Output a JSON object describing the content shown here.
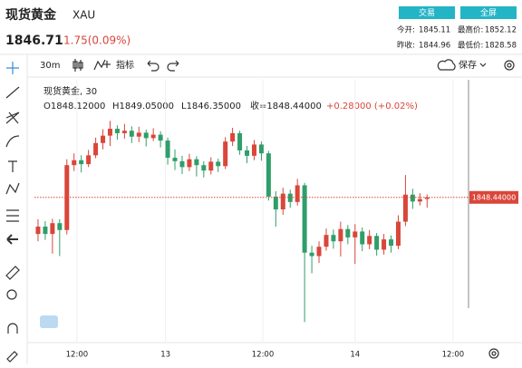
{
  "header": {
    "title": "现货黄金",
    "symbol": "XAU",
    "price": "1846.71",
    "change": "1.75(0.09%)",
    "buttons": [
      "交易",
      "全屏"
    ],
    "stats": [
      {
        "label": "今开:",
        "value": "1845.11"
      },
      {
        "label": "最高价:",
        "value": "1852.12"
      },
      {
        "label": "昨收:",
        "value": "1844.96"
      },
      {
        "label": "最低价:",
        "value": "1828.58"
      }
    ]
  },
  "toolbar": {
    "interval": "30m",
    "indicators": "指标",
    "save": "保存"
  },
  "legend": {
    "name": "现货黄金, 30",
    "open": "O1848.12000",
    "high": "H1849.05000",
    "low": "L1846.35000",
    "close": "收=1848.44000",
    "change": "+0.28000 (+0.02%)"
  },
  "chart_data": {
    "type": "candlestick",
    "up_color": "#d9463a",
    "down_color": "#2f9e6a",
    "x": [
      0,
      1,
      2,
      3,
      4,
      5,
      6,
      7,
      8,
      9,
      10,
      11,
      12,
      13,
      14,
      15,
      16,
      17,
      18,
      19,
      20,
      21,
      22,
      23,
      24,
      25,
      26,
      27,
      28,
      29,
      30,
      31,
      32,
      33,
      34,
      35,
      36,
      37,
      38,
      39,
      40,
      41,
      42,
      43,
      44,
      45,
      46,
      47,
      48,
      49,
      50,
      51,
      52,
      53,
      54
    ],
    "open": [
      1841.0,
      1842.5,
      1841.0,
      1843.2,
      1841.8,
      1855.0,
      1856.0,
      1855.2,
      1857.0,
      1859.5,
      1861.0,
      1862.4,
      1861.5,
      1862.0,
      1860.8,
      1861.6,
      1860.5,
      1861.2,
      1860.0,
      1856.5,
      1855.8,
      1854.6,
      1856.2,
      1855.0,
      1853.9,
      1855.7,
      1854.8,
      1859.8,
      1861.5,
      1858.0,
      1856.9,
      1859.2,
      1857.4,
      1848.6,
      1846.0,
      1849.2,
      1847.5,
      1850.9,
      1837.2,
      1836.5,
      1838.4,
      1840.8,
      1839.5,
      1842.0,
      1840.3,
      1841.5,
      1838.9,
      1840.6,
      1837.8,
      1839.9,
      1838.6,
      1843.5,
      1849.0,
      1847.6,
      1848.12
    ],
    "high": [
      1844.0,
      1843.6,
      1844.1,
      1844.0,
      1856.2,
      1857.4,
      1857.0,
      1858.1,
      1860.6,
      1862.3,
      1864.0,
      1863.1,
      1863.4,
      1862.9,
      1862.8,
      1862.2,
      1862.5,
      1861.9,
      1860.6,
      1858.2,
      1856.9,
      1857.3,
      1856.8,
      1855.8,
      1856.6,
      1856.3,
      1860.7,
      1862.6,
      1862.0,
      1858.9,
      1860.1,
      1859.8,
      1857.9,
      1849.7,
      1850.4,
      1850.0,
      1852.2,
      1851.4,
      1838.6,
      1839.5,
      1842.1,
      1841.9,
      1843.5,
      1842.8,
      1843.0,
      1842.3,
      1841.8,
      1841.2,
      1841.0,
      1840.7,
      1844.8,
      1853.0,
      1850.2,
      1849.3,
      1849.05
    ],
    "low": [
      1839.5,
      1839.8,
      1837.0,
      1836.5,
      1840.9,
      1853.8,
      1853.5,
      1854.6,
      1856.4,
      1858.2,
      1858.9,
      1860.2,
      1860.4,
      1859.5,
      1859.7,
      1858.8,
      1859.9,
      1858.6,
      1855.1,
      1854.0,
      1853.2,
      1853.8,
      1852.7,
      1852.5,
      1853.1,
      1853.6,
      1854.2,
      1858.9,
      1857.1,
      1855.4,
      1856.0,
      1855.9,
      1847.8,
      1842.5,
      1844.9,
      1846.3,
      1846.8,
      1823.1,
      1833.0,
      1835.1,
      1837.6,
      1838.0,
      1836.4,
      1838.9,
      1834.9,
      1837.5,
      1837.9,
      1836.6,
      1836.8,
      1837.2,
      1837.9,
      1842.6,
      1846.1,
      1846.8,
      1846.35
    ],
    "close": [
      1842.5,
      1841.0,
      1843.2,
      1841.8,
      1855.0,
      1856.0,
      1855.2,
      1857.0,
      1859.5,
      1861.0,
      1862.4,
      1861.5,
      1862.0,
      1860.8,
      1861.6,
      1860.5,
      1861.2,
      1860.0,
      1856.5,
      1855.8,
      1854.6,
      1856.2,
      1855.0,
      1853.9,
      1855.7,
      1854.8,
      1859.8,
      1861.5,
      1858.0,
      1856.9,
      1859.2,
      1857.4,
      1848.6,
      1846.0,
      1849.2,
      1847.5,
      1850.9,
      1837.2,
      1836.5,
      1838.4,
      1840.8,
      1839.5,
      1842.0,
      1840.3,
      1841.5,
      1838.9,
      1840.6,
      1837.8,
      1839.9,
      1838.6,
      1843.5,
      1849.0,
      1847.6,
      1848.1,
      1848.44
    ],
    "xlim": [
      -0.5,
      59.5
    ],
    "ylim": [
      1820,
      1872
    ],
    "xticks": [
      {
        "value": 5.4,
        "label": "12:00"
      },
      {
        "value": 17.7,
        "label": "13"
      },
      {
        "value": 31.2,
        "label": "12:00"
      },
      {
        "value": 44,
        "label": "14"
      },
      {
        "value": 57.6,
        "label": "12:00"
      }
    ],
    "last_price": {
      "value": 1848.44,
      "label": "1848.44000"
    },
    "grid": true
  }
}
